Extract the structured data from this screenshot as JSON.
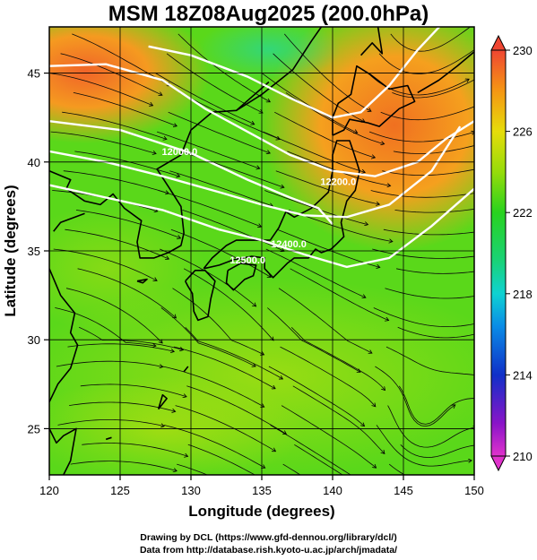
{
  "title": "MSM 18Z08Aug2025 (200.0hPa)",
  "axes": {
    "xlabel": "Longitude (degrees)",
    "ylabel": "Latitude  (degrees)",
    "xticks": [
      120,
      125,
      130,
      135,
      140,
      145,
      150
    ],
    "yticks": [
      25,
      30,
      35,
      40,
      45
    ],
    "xlim": [
      120,
      150
    ],
    "ylim": [
      22.4,
      47.6
    ]
  },
  "colorbar": {
    "min": 210,
    "max": 230,
    "ticks": [
      210,
      214,
      218,
      222,
      226,
      230
    ],
    "unit": "",
    "colors": [
      "#e033cc",
      "#7a10c8",
      "#1030c8",
      "#0ab4e8",
      "#19d2a0",
      "#1ed23c",
      "#78dc0a",
      "#e6dc0a",
      "#f59614",
      "#f04632"
    ]
  },
  "contours": [
    {
      "label": "12000.0"
    },
    {
      "label": "12200.0"
    },
    {
      "label": "12400.0"
    },
    {
      "label": "12500.0"
    }
  ],
  "footer": {
    "line1": "Drawing by DCL (https://www.gfd-dennou.org/library/dcl/)",
    "line2": "Data from http://database.rish.kyoto-u.ac.jp/arch/jmadata/"
  },
  "colors": {
    "warm_core": "#f07a20",
    "field_green": "#6edc14",
    "contour": "#ffffff",
    "coast": "#000000"
  }
}
